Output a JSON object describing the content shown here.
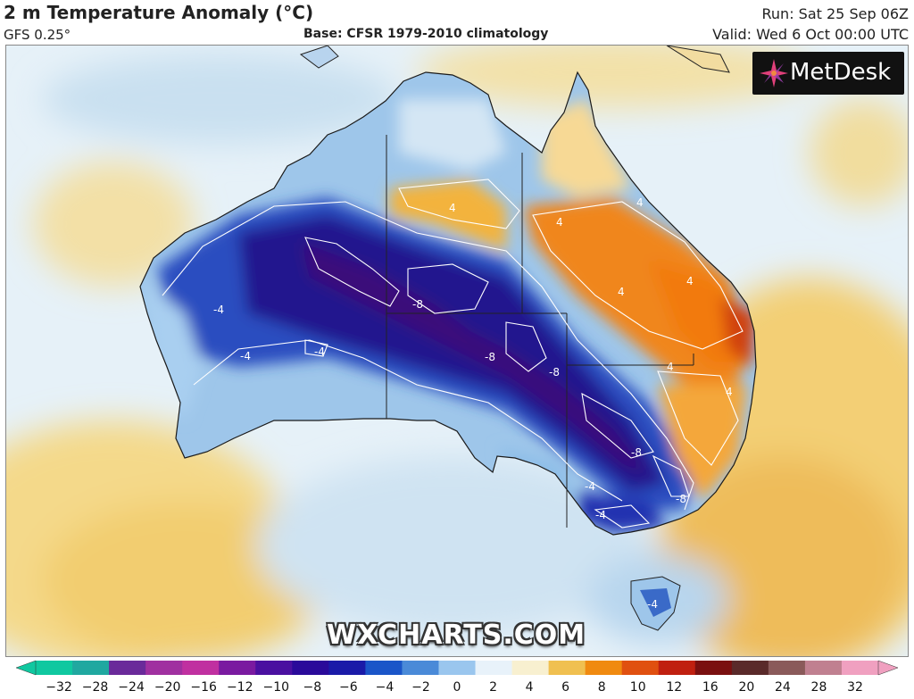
{
  "header": {
    "title": "2 m Temperature Anomaly (°C)",
    "model": "GFS 0.25°",
    "base": "Base: CFSR 1979-2010 climatology",
    "run": "Run: Sat 25 Sep 06Z",
    "valid": "Valid: Wed 6 Oct 00:00 UTC"
  },
  "logo": {
    "text": "MetDesk",
    "icon": "metdesk-starburst-icon"
  },
  "watermark": "WXCHARTS.COM",
  "colorbar": {
    "ticks": [
      "−32",
      "−28",
      "−24",
      "−20",
      "−16",
      "−12",
      "−10",
      "−8",
      "−6",
      "−4",
      "−2",
      "0",
      "2",
      "4",
      "6",
      "8",
      "10",
      "12",
      "16",
      "20",
      "24",
      "28",
      "32"
    ],
    "colors": [
      "#10c8a0",
      "#20a8a0",
      "#6a2a9a",
      "#a030a0",
      "#c030a0",
      "#7a1aa0",
      "#4a10a0",
      "#2a0a9a",
      "#1a1aa8",
      "#1a55c8",
      "#4a8ad8",
      "#9ac6ee",
      "#e8f2fa",
      "#f8f0d0",
      "#f0c050",
      "#f08a10",
      "#e05010",
      "#c02010",
      "#7a1010",
      "#5a2a2a",
      "#8a5a5a",
      "#c08090",
      "#f0a0c0"
    ]
  },
  "contour_labels": [
    "-4",
    "-4",
    "-4",
    "-8",
    "-8",
    "-8",
    "-8",
    "-8",
    "-4",
    "-4",
    "4",
    "4",
    "4",
    "4",
    "4",
    "4",
    "4",
    "-4"
  ],
  "map": {
    "region": "Australia",
    "features": [
      "ocean",
      "land",
      "state-borders",
      "coastlines"
    ]
  }
}
